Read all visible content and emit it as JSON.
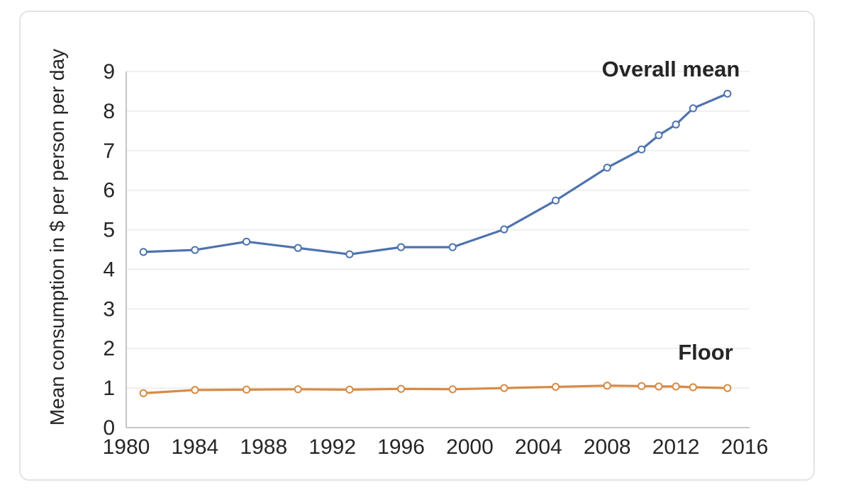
{
  "card": {
    "background": "#ffffff",
    "border_color": "#e3e3e3"
  },
  "chart_data": {
    "type": "line",
    "title": "",
    "xlabel": "",
    "ylabel": "Mean consumption in $ per person per day",
    "x": [
      1981,
      1984,
      1987,
      1990,
      1993,
      1996,
      1999,
      2002,
      2005,
      2008,
      2010,
      2011,
      2012,
      2013,
      2015
    ],
    "series": [
      {
        "name": "Overall mean",
        "color": "#4e73ae",
        "values": [
          4.44,
          4.49,
          4.7,
          4.54,
          4.38,
          4.56,
          4.56,
          5.01,
          5.74,
          6.57,
          7.03,
          7.39,
          7.66,
          8.07,
          8.44
        ]
      },
      {
        "name": "Floor",
        "color": "#d78b45",
        "values": [
          0.87,
          0.95,
          0.96,
          0.97,
          0.96,
          0.98,
          0.97,
          1.0,
          1.03,
          1.06,
          1.05,
          1.04,
          1.04,
          1.02,
          1.0
        ]
      }
    ],
    "xlim": [
      1980,
      2016
    ],
    "ylim": [
      0,
      9
    ],
    "x_ticks": [
      "1980",
      "1984",
      "1988",
      "1992",
      "1996",
      "2000",
      "2004",
      "2008",
      "2012",
      "2016"
    ],
    "y_ticks": [
      "0",
      "1",
      "2",
      "3",
      "4",
      "5",
      "6",
      "7",
      "8",
      "9"
    ],
    "grid": "horizontal",
    "legend": "inline-labels",
    "marker_style": "open-circle",
    "colors": {
      "axis": "#c6c6c6",
      "grid": "#ececec",
      "text": "#262626",
      "marker_fill": "#ffffff"
    }
  }
}
